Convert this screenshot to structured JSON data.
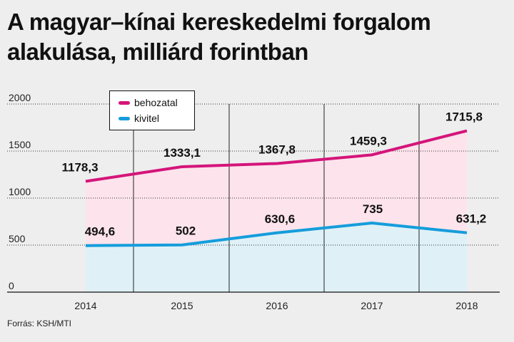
{
  "title_line1": "A magyar–kínai kereskedelmi forgalom",
  "title_line2": "alakulása, milliárd forintban",
  "source": "Forrás: KSH/MTI",
  "colors": {
    "behozatal": "#d4157a",
    "behozatal_fill": "#fde3ec",
    "kivitel": "#159ddb",
    "kivitel_fill": "#dff1f7"
  },
  "chart_data": {
    "type": "area",
    "categories": [
      "2014",
      "2015",
      "2016",
      "2017",
      "2018"
    ],
    "ylim": [
      0,
      2000
    ],
    "yticks": [
      "0",
      "500",
      "1000",
      "1500",
      "2000"
    ],
    "legend_position": "top-left",
    "series": [
      {
        "name": "behozatal",
        "values": [
          1178.3,
          1333.1,
          1367.8,
          1459.3,
          1715.8
        ],
        "labels": [
          "1178,3",
          "1333,1",
          "1367,8",
          "1459,3",
          "1715,8"
        ]
      },
      {
        "name": "kivitel",
        "values": [
          494.6,
          502,
          630.6,
          735,
          631.2
        ],
        "labels": [
          "494,6",
          "502",
          "630,6",
          "735",
          "631,2"
        ]
      }
    ]
  }
}
